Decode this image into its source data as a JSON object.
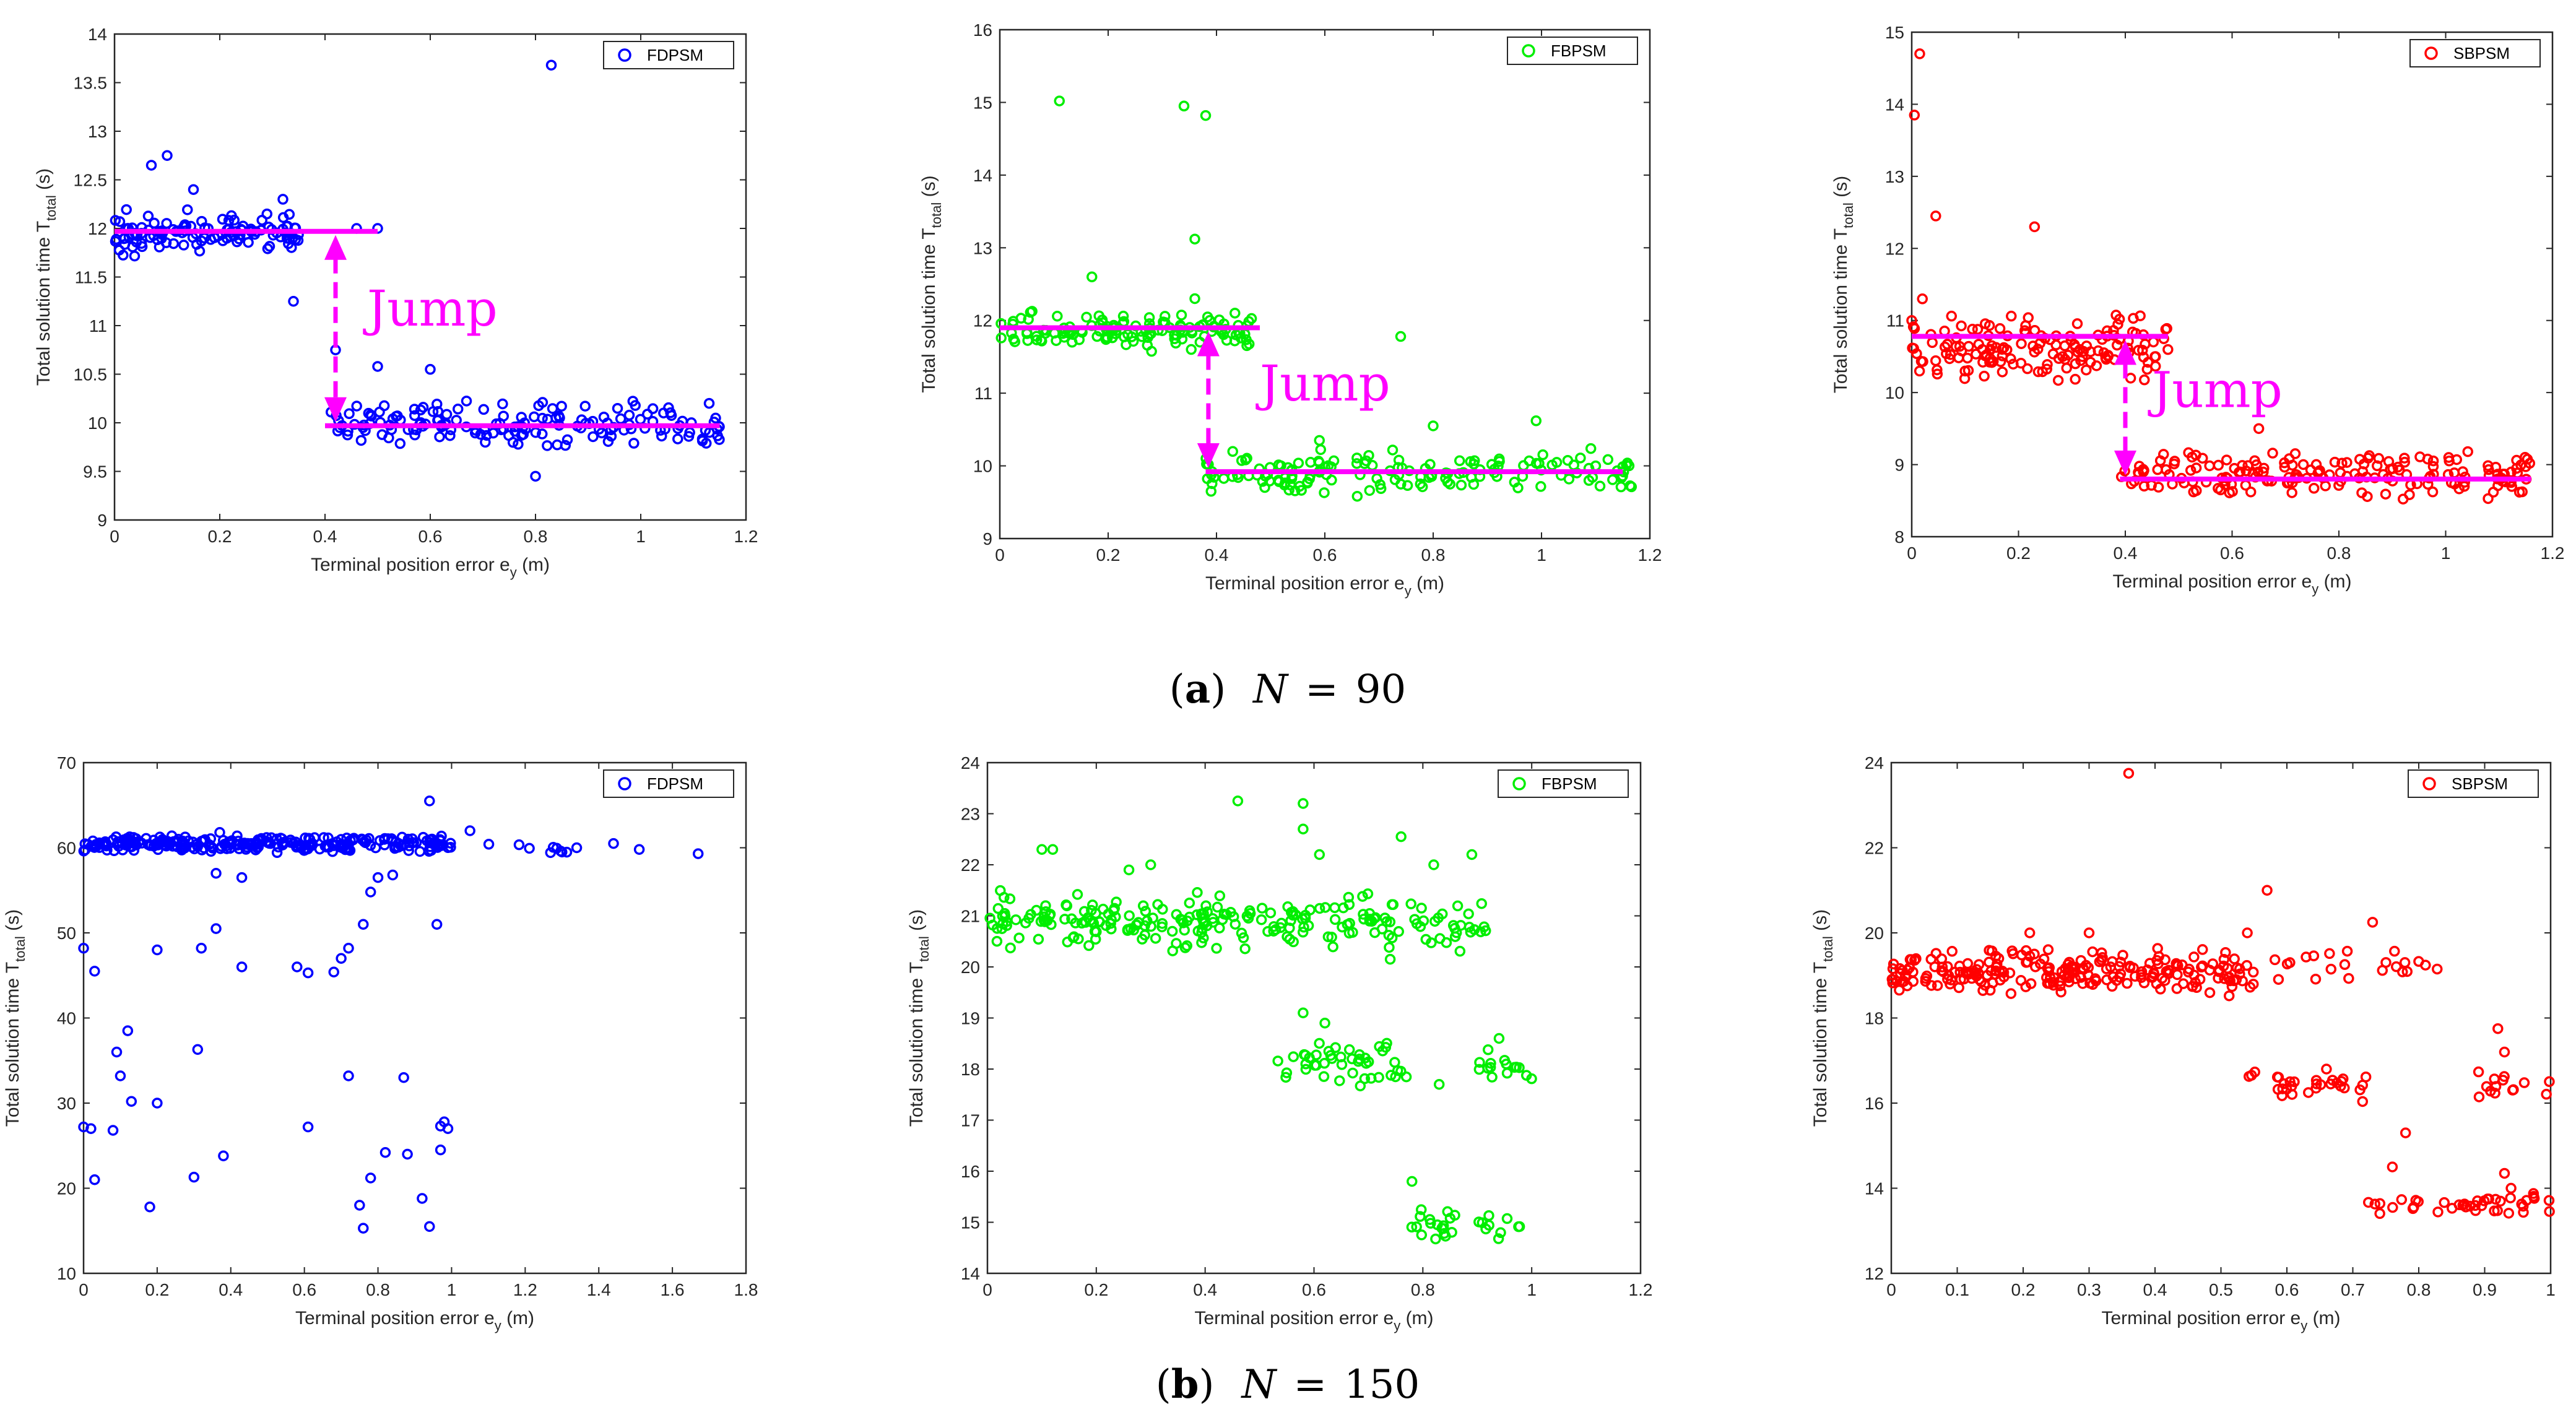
{
  "captions": [
    {
      "letter": "a",
      "n_var": "N",
      "eq": "=",
      "n_val": "90"
    },
    {
      "letter": "b",
      "n_var": "N",
      "eq": "=",
      "n_val": "150"
    }
  ],
  "axis_text": {
    "xlabel_pre": "Terminal position error e",
    "xlabel_sub": "y",
    "xlabel_post": " (m)",
    "ylabel_pre": "Total solution time T",
    "ylabel_sub": "total",
    "ylabel_post": " (s)"
  },
  "colors": {
    "FDPSM": "#0000ff",
    "FBPSM": "#00ee00",
    "SBPSM": "#ff0000",
    "jump": "#ff00ff"
  },
  "chart_data": [
    {
      "type": "scatter",
      "series_name": "FDPSM",
      "color": "#0000ff",
      "xlim": [
        0,
        1.2
      ],
      "ylim": [
        9,
        14
      ],
      "xticks": [
        "0",
        "0.2",
        "0.4",
        "0.6",
        "0.8",
        "1",
        "1.2"
      ],
      "xtick_vals": [
        0,
        0.2,
        0.4,
        0.6,
        0.8,
        1,
        1.2
      ],
      "yticks": [
        "9",
        "9.5",
        "10",
        "10.5",
        "11",
        "11.5",
        "12",
        "12.5",
        "13",
        "13.5",
        "14"
      ],
      "ytick_vals": [
        9,
        9.5,
        10,
        10.5,
        11,
        11.5,
        12,
        12.5,
        13,
        13.5,
        14
      ],
      "legend": "FDPSM",
      "legend_pos": "top-right",
      "clusters": [
        {
          "x": [
            0.0,
            0.35
          ],
          "y": [
            11.7,
            12.2
          ],
          "n": 120
        },
        {
          "x": [
            0.41,
            1.15
          ],
          "y": [
            9.7,
            10.25
          ],
          "n": 160
        }
      ],
      "outliers": [
        [
          0.83,
          13.68
        ],
        [
          0.1,
          12.75
        ],
        [
          0.07,
          12.65
        ],
        [
          0.15,
          12.4
        ],
        [
          0.32,
          12.3
        ],
        [
          0.34,
          11.25
        ],
        [
          0.42,
          10.75
        ],
        [
          0.5,
          10.58
        ],
        [
          0.6,
          10.55
        ],
        [
          0.8,
          9.45
        ],
        [
          0.5,
          12.0
        ],
        [
          0.46,
          12.0
        ],
        [
          1.13,
          10.2
        ]
      ],
      "annotation": {
        "text": "Jump",
        "high_line": {
          "x0": 0.0,
          "x1": 0.5,
          "y": 11.97
        },
        "low_line": {
          "x0": 0.4,
          "x1": 1.15,
          "y": 9.97
        },
        "arrow_x": 0.42,
        "label_x": 0.48,
        "label_y": 11.0
      }
    },
    {
      "type": "scatter",
      "series_name": "FBPSM",
      "color": "#00ee00",
      "xlim": [
        0,
        1.2
      ],
      "ylim": [
        9,
        16
      ],
      "xticks": [
        "0",
        "0.2",
        "0.4",
        "0.6",
        "0.8",
        "1",
        "1.2"
      ],
      "xtick_vals": [
        0,
        0.2,
        0.4,
        0.6,
        0.8,
        1,
        1.2
      ],
      "yticks": [
        "9",
        "10",
        "11",
        "12",
        "13",
        "14",
        "15",
        "16"
      ],
      "ytick_vals": [
        9,
        10,
        11,
        12,
        13,
        14,
        15,
        16
      ],
      "legend": "FBPSM",
      "legend_pos": "top-right",
      "clusters": [
        {
          "x": [
            0.0,
            0.47
          ],
          "y": [
            11.55,
            12.15
          ],
          "n": 130
        },
        {
          "x": [
            0.38,
            1.17
          ],
          "y": [
            9.55,
            10.25
          ],
          "n": 150
        }
      ],
      "outliers": [
        [
          0.11,
          15.02
        ],
        [
          0.34,
          14.95
        ],
        [
          0.38,
          14.82
        ],
        [
          0.36,
          13.12
        ],
        [
          0.17,
          12.6
        ],
        [
          0.74,
          11.78
        ],
        [
          0.8,
          10.55
        ],
        [
          0.99,
          10.62
        ],
        [
          0.59,
          10.35
        ],
        [
          0.39,
          9.65
        ],
        [
          0.36,
          12.3
        ]
      ],
      "annotation": {
        "text": "Jump",
        "high_line": {
          "x0": 0.0,
          "x1": 0.48,
          "y": 11.9
        },
        "low_line": {
          "x0": 0.38,
          "x1": 1.15,
          "y": 9.92
        },
        "arrow_x": 0.385,
        "label_x": 0.48,
        "label_y": 10.9
      }
    },
    {
      "type": "scatter",
      "series_name": "SBPSM",
      "color": "#ff0000",
      "xlim": [
        0,
        1.2
      ],
      "ylim": [
        8,
        15
      ],
      "xticks": [
        "0",
        "0.2",
        "0.4",
        "0.6",
        "0.8",
        "1",
        "1.2"
      ],
      "xtick_vals": [
        0,
        0.2,
        0.4,
        0.6,
        0.8,
        1,
        1.2
      ],
      "yticks": [
        "8",
        "9",
        "10",
        "11",
        "12",
        "13",
        "14",
        "15"
      ],
      "ytick_vals": [
        8,
        9,
        10,
        11,
        12,
        13,
        14,
        15
      ],
      "legend": "SBPSM",
      "legend_pos": "top-right",
      "clusters": [
        {
          "x": [
            0.0,
            0.48
          ],
          "y": [
            10.1,
            11.1
          ],
          "n": 150
        },
        {
          "x": [
            0.39,
            1.16
          ],
          "y": [
            8.5,
            9.25
          ],
          "n": 180
        }
      ],
      "outliers": [
        [
          0.015,
          14.7
        ],
        [
          0.005,
          13.85
        ],
        [
          0.045,
          12.45
        ],
        [
          0.23,
          12.3
        ],
        [
          0.0,
          11.0
        ],
        [
          0.02,
          11.3
        ],
        [
          0.65,
          9.5
        ],
        [
          0.41,
          10.2
        ]
      ],
      "annotation": {
        "text": "Jump",
        "high_line": {
          "x0": 0.0,
          "x1": 0.48,
          "y": 10.78
        },
        "low_line": {
          "x0": 0.39,
          "x1": 1.16,
          "y": 8.8
        },
        "arrow_x": 0.4,
        "label_x": 0.45,
        "label_y": 9.8
      }
    },
    {
      "type": "scatter",
      "series_name": "FDPSM",
      "color": "#0000ff",
      "xlim": [
        0,
        1.8
      ],
      "ylim": [
        10,
        70
      ],
      "xticks": [
        "0",
        "0.2",
        "0.4",
        "0.6",
        "0.8",
        "1",
        "1.2",
        "1.4",
        "1.6",
        "1.8"
      ],
      "xtick_vals": [
        0,
        0.2,
        0.4,
        0.6,
        0.8,
        1,
        1.2,
        1.4,
        1.6,
        1.8
      ],
      "yticks": [
        "10",
        "20",
        "30",
        "40",
        "50",
        "60",
        "70"
      ],
      "ytick_vals": [
        10,
        20,
        30,
        40,
        50,
        60,
        70
      ],
      "legend": "FDPSM",
      "legend_pos": "top-right",
      "clusters": [
        {
          "x": [
            0.0,
            1.0
          ],
          "y": [
            59.3,
            61.5
          ],
          "n": 260
        },
        {
          "x": [
            1.1,
            1.32
          ],
          "y": [
            59.3,
            60.8
          ],
          "n": 8
        }
      ],
      "outliers": [
        [
          0.0,
          48.2
        ],
        [
          0.03,
          45.5
        ],
        [
          0.0,
          27.2
        ],
        [
          0.02,
          27.0
        ],
        [
          0.03,
          21.0
        ],
        [
          0.08,
          26.8
        ],
        [
          0.09,
          36.0
        ],
        [
          0.1,
          33.2
        ],
        [
          0.12,
          38.5
        ],
        [
          0.13,
          30.2
        ],
        [
          0.18,
          17.8
        ],
        [
          0.2,
          48.0
        ],
        [
          0.2,
          30.0
        ],
        [
          0.3,
          21.3
        ],
        [
          0.31,
          36.3
        ],
        [
          0.32,
          48.2
        ],
        [
          0.36,
          50.5
        ],
        [
          0.38,
          23.8
        ],
        [
          0.36,
          57.0
        ],
        [
          0.43,
          46.0
        ],
        [
          0.43,
          56.5
        ],
        [
          0.58,
          46.0
        ],
        [
          0.61,
          45.3
        ],
        [
          0.61,
          27.2
        ],
        [
          0.68,
          45.4
        ],
        [
          0.7,
          47.0
        ],
        [
          0.72,
          48.2
        ],
        [
          0.72,
          33.2
        ],
        [
          0.75,
          18.0
        ],
        [
          0.76,
          15.3
        ],
        [
          0.76,
          51.0
        ],
        [
          0.78,
          21.2
        ],
        [
          0.78,
          54.8
        ],
        [
          0.8,
          56.5
        ],
        [
          0.82,
          24.2
        ],
        [
          0.84,
          56.8
        ],
        [
          0.87,
          33.0
        ],
        [
          0.88,
          24.0
        ],
        [
          0.92,
          18.8
        ],
        [
          0.94,
          15.5
        ],
        [
          0.94,
          65.5
        ],
        [
          0.96,
          51.0
        ],
        [
          0.97,
          24.5
        ],
        [
          0.97,
          27.3
        ],
        [
          0.98,
          27.8
        ],
        [
          0.99,
          27.0
        ],
        [
          1.05,
          62.0
        ],
        [
          1.3,
          59.5
        ],
        [
          1.34,
          60.0
        ],
        [
          1.44,
          60.5
        ],
        [
          1.51,
          59.8
        ],
        [
          1.67,
          59.3
        ],
        [
          0.37,
          61.8
        ]
      ],
      "annotation": null
    },
    {
      "type": "scatter",
      "series_name": "FBPSM",
      "color": "#00ee00",
      "xlim": [
        0,
        1.2
      ],
      "ylim": [
        14,
        24
      ],
      "xticks": [
        "0",
        "0.2",
        "0.4",
        "0.6",
        "0.8",
        "1",
        "1.2"
      ],
      "xtick_vals": [
        0,
        0.2,
        0.4,
        0.6,
        0.8,
        1,
        1.2
      ],
      "yticks": [
        "14",
        "15",
        "16",
        "17",
        "18",
        "19",
        "20",
        "21",
        "22",
        "23",
        "24"
      ],
      "ytick_vals": [
        14,
        15,
        16,
        17,
        18,
        19,
        20,
        21,
        22,
        23,
        24
      ],
      "legend": "FBPSM",
      "legend_pos": "top-right",
      "clusters": [
        {
          "x": [
            0.0,
            0.92
          ],
          "y": [
            20.3,
            21.5
          ],
          "n": 230
        },
        {
          "x": [
            0.53,
            0.77
          ],
          "y": [
            17.6,
            18.6
          ],
          "n": 45
        },
        {
          "x": [
            0.9,
            1.0
          ],
          "y": [
            17.6,
            18.6
          ],
          "n": 15
        },
        {
          "x": [
            0.77,
            0.86
          ],
          "y": [
            14.6,
            15.3
          ],
          "n": 18
        },
        {
          "x": [
            0.9,
            0.98
          ],
          "y": [
            14.6,
            15.3
          ],
          "n": 10
        }
      ],
      "outliers": [
        [
          0.46,
          23.25
        ],
        [
          0.58,
          23.2
        ],
        [
          0.58,
          22.7
        ],
        [
          0.76,
          22.55
        ],
        [
          0.61,
          22.2
        ],
        [
          0.89,
          22.2
        ],
        [
          0.82,
          22.0
        ],
        [
          0.12,
          22.3
        ],
        [
          0.1,
          22.3
        ],
        [
          0.3,
          22.0
        ],
        [
          0.26,
          21.9
        ],
        [
          0.58,
          19.1
        ],
        [
          0.62,
          18.9
        ],
        [
          0.78,
          15.8
        ],
        [
          0.74,
          20.15
        ],
        [
          0.83,
          17.7
        ],
        [
          0.94,
          18.6
        ]
      ],
      "annotation": null
    },
    {
      "type": "scatter",
      "series_name": "SBPSM",
      "color": "#ff0000",
      "xlim": [
        0,
        1
      ],
      "ylim": [
        12,
        24
      ],
      "xticks": [
        "0",
        "0.1",
        "0.2",
        "0.3",
        "0.4",
        "0.5",
        "0.6",
        "0.7",
        "0.8",
        "0.9",
        "1"
      ],
      "xtick_vals": [
        0,
        0.1,
        0.2,
        0.3,
        0.4,
        0.5,
        0.6,
        0.7,
        0.8,
        0.9,
        1
      ],
      "yticks": [
        "12",
        "14",
        "16",
        "18",
        "20",
        "22",
        "24"
      ],
      "ytick_vals": [
        12,
        14,
        16,
        18,
        20,
        22,
        24
      ],
      "legend": "SBPSM",
      "legend_pos": "top-right",
      "clusters": [
        {
          "x": [
            0.0,
            0.55
          ],
          "y": [
            18.5,
            19.7
          ],
          "n": 230
        },
        {
          "x": [
            0.58,
            0.83
          ],
          "y": [
            18.8,
            19.7
          ],
          "n": 22
        },
        {
          "x": [
            0.54,
            0.72
          ],
          "y": [
            16.0,
            16.8
          ],
          "n": 30
        },
        {
          "x": [
            0.89,
            1.0
          ],
          "y": [
            16.0,
            16.8
          ],
          "n": 14
        },
        {
          "x": [
            0.72,
            1.0
          ],
          "y": [
            13.3,
            13.9
          ],
          "n": 40
        }
      ],
      "outliers": [
        [
          0.36,
          23.75
        ],
        [
          0.57,
          21.0
        ],
        [
          0.73,
          20.25
        ],
        [
          0.21,
          20.0
        ],
        [
          0.54,
          20.0
        ],
        [
          0.3,
          20.0
        ],
        [
          0.92,
          17.75
        ],
        [
          0.93,
          17.2
        ],
        [
          0.78,
          15.3
        ],
        [
          0.76,
          14.5
        ],
        [
          0.93,
          14.35
        ],
        [
          0.94,
          14.0
        ],
        [
          0.66,
          16.8
        ]
      ],
      "annotation": null
    }
  ]
}
